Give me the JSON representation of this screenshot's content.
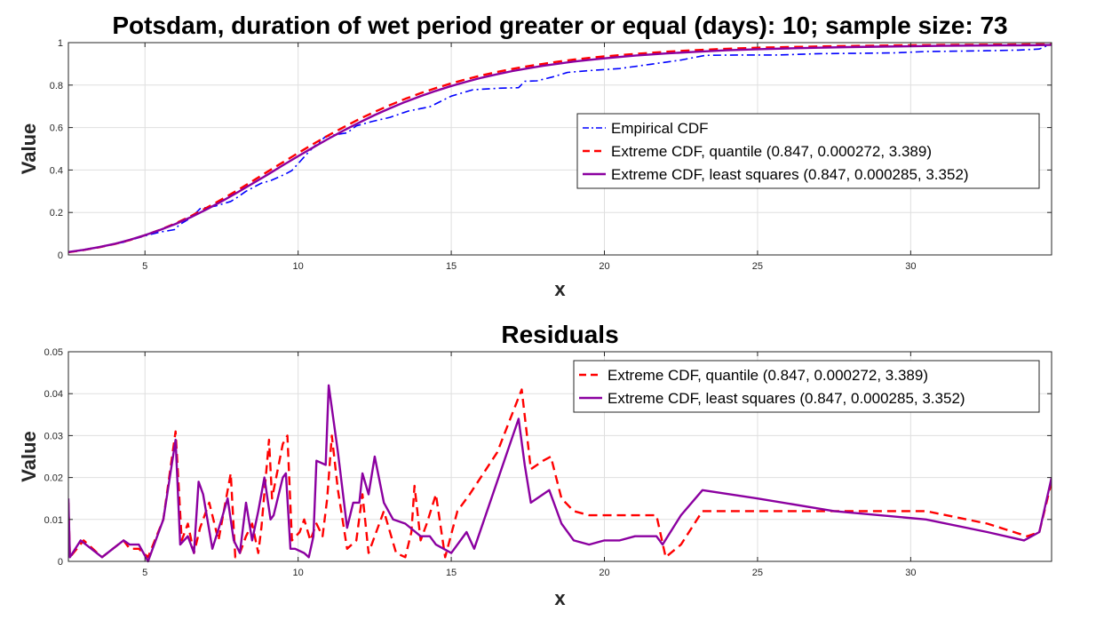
{
  "chart_data": [
    {
      "type": "line",
      "title": "Potsdam, duration of wet period greater or equal (days): 10; sample size: 73",
      "xlabel": "x",
      "ylabel": "Value",
      "xlim": [
        2.5,
        34.6
      ],
      "ylim": [
        0,
        1
      ],
      "xticks": [
        5,
        10,
        15,
        20,
        25,
        30
      ],
      "yticks": [
        0,
        0.2,
        0.4,
        0.6,
        0.8,
        1
      ],
      "ytick_labels": [
        "0",
        "0.2",
        "0.4",
        "0.6",
        "0.8",
        "1"
      ],
      "grid": true,
      "legend_position": "right",
      "series": [
        {
          "name": "Empirical CDF",
          "color": "#0000ff",
          "style": "dashdot",
          "x": [
            2.5,
            3,
            3.6,
            4.3,
            5,
            5.5,
            5.8,
            6,
            6.1,
            6.5,
            6.8,
            7.3,
            7.8,
            8,
            8.3,
            8.8,
            9.1,
            9.6,
            9.8,
            10.3,
            10.5,
            10.9,
            11.3,
            11.6,
            11.9,
            12.4,
            13,
            13.6,
            14.3,
            15,
            15.7,
            16.5,
            17.2,
            17.4,
            17.8,
            18.3,
            18.8,
            19.5,
            20.5,
            21.5,
            22.5,
            23.3,
            24.5,
            25.7,
            27,
            28.3,
            29.5,
            30.5,
            31.5,
            32.5,
            33.5,
            34.2,
            34.6
          ],
          "values": [
            0.012,
            0.025,
            0.04,
            0.06,
            0.09,
            0.108,
            0.115,
            0.12,
            0.14,
            0.175,
            0.218,
            0.23,
            0.252,
            0.27,
            0.3,
            0.338,
            0.35,
            0.382,
            0.398,
            0.478,
            0.508,
            0.558,
            0.568,
            0.575,
            0.608,
            0.628,
            0.648,
            0.678,
            0.698,
            0.748,
            0.778,
            0.785,
            0.788,
            0.818,
            0.82,
            0.838,
            0.86,
            0.868,
            0.878,
            0.898,
            0.918,
            0.94,
            0.942,
            0.942,
            0.948,
            0.95,
            0.952,
            0.958,
            0.96,
            0.962,
            0.965,
            0.97,
            0.995
          ]
        },
        {
          "name": "Extreme CDF, quantile (0.847, 0.000272, 3.389)",
          "color": "#ff0000",
          "style": "dashed",
          "x": [
            2.5,
            3,
            3.5,
            4,
            4.5,
            5,
            5.5,
            6,
            6.5,
            7,
            7.5,
            8,
            8.5,
            9,
            9.5,
            10,
            10.5,
            11,
            11.5,
            12,
            12.5,
            13,
            13.5,
            14,
            14.5,
            15,
            15.5,
            16,
            16.5,
            17,
            17.5,
            18,
            18.5,
            19,
            19.5,
            20,
            21,
            22,
            23,
            24,
            25,
            26,
            27,
            28,
            29,
            30,
            31,
            32,
            33,
            34,
            34.6
          ],
          "values": [
            0.013,
            0.023,
            0.036,
            0.051,
            0.07,
            0.093,
            0.119,
            0.149,
            0.183,
            0.221,
            0.261,
            0.303,
            0.347,
            0.392,
            0.436,
            0.48,
            0.523,
            0.564,
            0.603,
            0.64,
            0.674,
            0.706,
            0.735,
            0.762,
            0.786,
            0.808,
            0.828,
            0.846,
            0.862,
            0.876,
            0.889,
            0.9,
            0.911,
            0.92,
            0.928,
            0.935,
            0.947,
            0.957,
            0.965,
            0.971,
            0.976,
            0.979,
            0.982,
            0.984,
            0.986,
            0.988,
            0.989,
            0.99,
            0.991,
            0.992,
            0.992
          ]
        },
        {
          "name": "Extreme CDF, least squares (0.847, 0.000285, 3.352)",
          "color": "#8b00a0",
          "style": "solid",
          "x": [
            2.5,
            3,
            3.5,
            4,
            4.5,
            5,
            5.5,
            6,
            6.5,
            7,
            7.5,
            8,
            8.5,
            9,
            9.5,
            10,
            10.5,
            11,
            11.5,
            12,
            12.5,
            13,
            13.5,
            14,
            14.5,
            15,
            15.5,
            16,
            16.5,
            17,
            17.5,
            18,
            18.5,
            19,
            19.5,
            20,
            21,
            22,
            23,
            24,
            25,
            26,
            27,
            28,
            29,
            30,
            31,
            32,
            33,
            34,
            34.6
          ],
          "values": [
            0.014,
            0.024,
            0.037,
            0.052,
            0.071,
            0.093,
            0.118,
            0.146,
            0.178,
            0.214,
            0.252,
            0.293,
            0.335,
            0.378,
            0.422,
            0.465,
            0.507,
            0.548,
            0.587,
            0.624,
            0.659,
            0.691,
            0.721,
            0.748,
            0.773,
            0.796,
            0.816,
            0.835,
            0.851,
            0.866,
            0.879,
            0.891,
            0.901,
            0.911,
            0.919,
            0.926,
            0.939,
            0.949,
            0.957,
            0.964,
            0.969,
            0.973,
            0.976,
            0.979,
            0.981,
            0.983,
            0.985,
            0.986,
            0.987,
            0.988,
            0.989
          ]
        }
      ]
    },
    {
      "type": "line",
      "title": "Residuals",
      "xlabel": "x",
      "ylabel": "Value",
      "xlim": [
        2.5,
        34.6
      ],
      "ylim": [
        0,
        0.05
      ],
      "xticks": [
        5,
        10,
        15,
        20,
        25,
        30
      ],
      "yticks": [
        0,
        0.01,
        0.02,
        0.03,
        0.04,
        0.05
      ],
      "ytick_labels": [
        "0",
        "0.01",
        "0.02",
        "0.03",
        "0.04",
        "0.05"
      ],
      "grid": true,
      "legend_position": "top-right",
      "series": [
        {
          "name": "Extreme CDF, quantile (0.847, 0.000272, 3.389)",
          "color": "#ff0000",
          "style": "dashed",
          "x": [
            2.5,
            2.55,
            3,
            3.6,
            4.3,
            4.5,
            4.8,
            5.1,
            5.6,
            6,
            6.2,
            6.4,
            6.6,
            6.8,
            7.1,
            7.4,
            7.8,
            7.95,
            8.1,
            8.3,
            8.5,
            8.7,
            8.8,
            9.05,
            9.15,
            9.5,
            9.65,
            9.8,
            10.05,
            10.2,
            10.4,
            10.6,
            10.8,
            10.95,
            11.1,
            11.3,
            11.6,
            11.9,
            12.1,
            12.3,
            12.8,
            13.2,
            13.5,
            13.7,
            13.8,
            14,
            14.2,
            14.5,
            14.8,
            15.2,
            15.6,
            16.5,
            17.3,
            17.6,
            18,
            18.25,
            18.6,
            19,
            19.5,
            20,
            20.5,
            21,
            21.7,
            22,
            22.5,
            23.2,
            25,
            27.5,
            30,
            30.5,
            32.5,
            33.8,
            34.2,
            34.6
          ],
          "values": [
            0.014,
            0.001,
            0.005,
            0.001,
            0.005,
            0.003,
            0.003,
            0.001,
            0.01,
            0.031,
            0.005,
            0.009,
            0.002,
            0.008,
            0.014,
            0.005,
            0.021,
            0.001,
            0.002,
            0.006,
            0.009,
            0.002,
            0.008,
            0.029,
            0.015,
            0.028,
            0.03,
            0.005,
            0.007,
            0.01,
            0.005,
            0.009,
            0.006,
            0.015,
            0.03,
            0.017,
            0.003,
            0.005,
            0.016,
            0.002,
            0.012,
            0.002,
            0.001,
            0.007,
            0.018,
            0.005,
            0.009,
            0.016,
            0.001,
            0.012,
            0.016,
            0.026,
            0.041,
            0.022,
            0.024,
            0.025,
            0.015,
            0.012,
            0.011,
            0.011,
            0.011,
            0.011,
            0.011,
            0.001,
            0.004,
            0.012,
            0.012,
            0.012,
            0.012,
            0.012,
            0.009,
            0.006,
            0.007,
            0.019
          ]
        },
        {
          "name": "Extreme CDF, least squares (0.847, 0.000285, 3.352)",
          "color": "#8b00a0",
          "style": "solid",
          "x": [
            2.5,
            2.55,
            2.9,
            3.6,
            4.3,
            4.5,
            4.8,
            5.1,
            5.6,
            6,
            6.15,
            6.4,
            6.6,
            6.75,
            6.9,
            7.2,
            7.5,
            7.7,
            7.9,
            8.1,
            8.3,
            8.5,
            8.7,
            8.9,
            9.1,
            9.2,
            9.5,
            9.6,
            9.75,
            9.9,
            10.2,
            10.35,
            10.5,
            10.6,
            10.9,
            11,
            11.3,
            11.6,
            11.8,
            12,
            12.1,
            12.3,
            12.5,
            12.8,
            13.1,
            13.5,
            14,
            14.3,
            14.5,
            15,
            15.5,
            15.75,
            17.2,
            17.4,
            17.6,
            18.2,
            18.6,
            19,
            19.5,
            20,
            20.5,
            21,
            21.7,
            21.9,
            22.5,
            23.2,
            25,
            27.5,
            30.5,
            32.5,
            33.7,
            34.2,
            34.6
          ],
          "values": [
            0.015,
            0.001,
            0.005,
            0.001,
            0.005,
            0.004,
            0.004,
            0.0,
            0.01,
            0.029,
            0.004,
            0.006,
            0.002,
            0.019,
            0.016,
            0.003,
            0.01,
            0.015,
            0.005,
            0.002,
            0.014,
            0.005,
            0.012,
            0.02,
            0.01,
            0.011,
            0.02,
            0.021,
            0.003,
            0.003,
            0.002,
            0.001,
            0.006,
            0.024,
            0.023,
            0.042,
            0.026,
            0.008,
            0.014,
            0.014,
            0.021,
            0.016,
            0.025,
            0.014,
            0.01,
            0.009,
            0.006,
            0.006,
            0.004,
            0.002,
            0.007,
            0.003,
            0.034,
            0.023,
            0.014,
            0.017,
            0.009,
            0.005,
            0.004,
            0.005,
            0.005,
            0.006,
            0.006,
            0.004,
            0.011,
            0.017,
            0.015,
            0.012,
            0.01,
            0.007,
            0.005,
            0.007,
            0.02
          ]
        }
      ]
    }
  ]
}
